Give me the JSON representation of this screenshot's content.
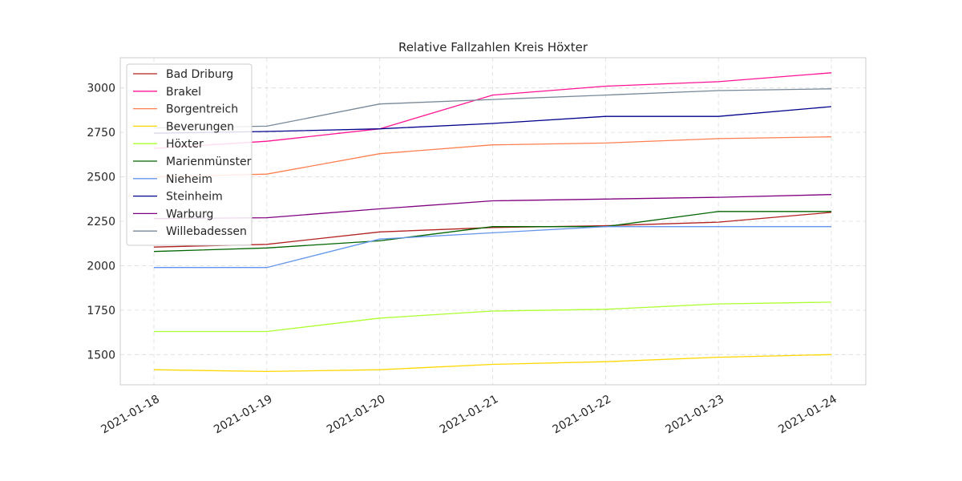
{
  "chart_data": {
    "type": "line",
    "title": "Relative Fallzahlen Kreis Höxter",
    "xlabel": "",
    "ylabel": "",
    "x": [
      "2021-01-18",
      "2021-01-19",
      "2021-01-20",
      "2021-01-21",
      "2021-01-22",
      "2021-01-23",
      "2021-01-24"
    ],
    "ylim": [
      1330,
      3170
    ],
    "yticks": [
      1500,
      1750,
      2000,
      2250,
      2500,
      2750,
      3000
    ],
    "grid": true,
    "legend_position": "top-left",
    "series": [
      {
        "name": "Bad Driburg",
        "color": "#b22222",
        "values": [
          2105,
          2120,
          2190,
          2215,
          2225,
          2245,
          2300
        ]
      },
      {
        "name": "Brakel",
        "color": "#ff1493",
        "values": [
          2660,
          2700,
          2770,
          2960,
          3010,
          3035,
          3085
        ]
      },
      {
        "name": "Borgentreich",
        "color": "#ff7f50",
        "values": [
          2500,
          2515,
          2630,
          2680,
          2690,
          2715,
          2725
        ]
      },
      {
        "name": "Beverungen",
        "color": "#ffd700",
        "values": [
          1415,
          1405,
          1415,
          1445,
          1460,
          1485,
          1500
        ]
      },
      {
        "name": "Höxter",
        "color": "#adff2f",
        "values": [
          1630,
          1630,
          1705,
          1745,
          1755,
          1785,
          1795
        ]
      },
      {
        "name": "Marienmünster",
        "color": "#006400",
        "values": [
          2080,
          2100,
          2140,
          2220,
          2220,
          2305,
          2305
        ]
      },
      {
        "name": "Nieheim",
        "color": "#6495ed",
        "values": [
          1990,
          1990,
          2150,
          2185,
          2220,
          2220,
          2220
        ]
      },
      {
        "name": "Steinheim",
        "color": "#00008b",
        "values": [
          2745,
          2755,
          2770,
          2800,
          2840,
          2840,
          2895
        ]
      },
      {
        "name": "Warburg",
        "color": "#800080",
        "values": [
          2265,
          2270,
          2320,
          2365,
          2375,
          2385,
          2400
        ]
      },
      {
        "name": "Willebadessen",
        "color": "#778899",
        "values": [
          2775,
          2785,
          2910,
          2935,
          2960,
          2985,
          2995
        ]
      }
    ]
  }
}
